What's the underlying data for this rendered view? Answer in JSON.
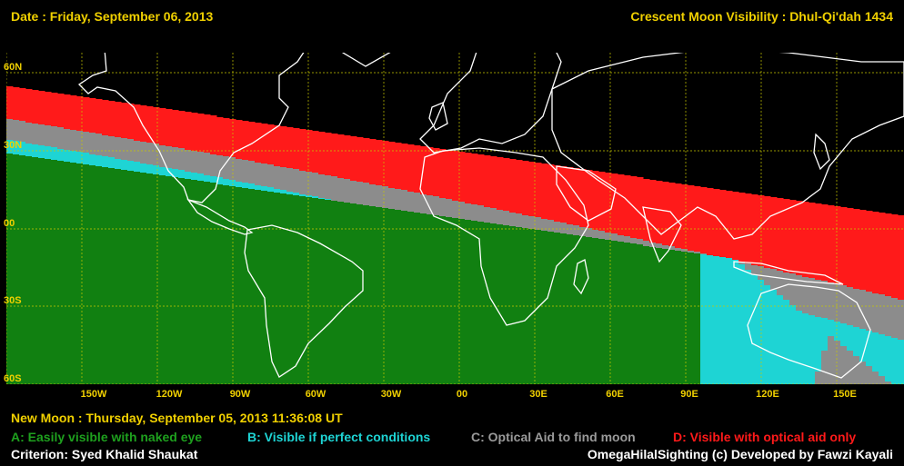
{
  "header": {
    "date": "Date : Friday, September 06, 2013",
    "title": "Crescent Moon Visibility : Dhul-Qi'dah  1434"
  },
  "map": {
    "lat_labels": [
      "60N",
      "30N",
      "00",
      "30S",
      "60S"
    ],
    "lon_labels": [
      "150W",
      "120W",
      "90W",
      "60W",
      "30W",
      "00",
      "30E",
      "60E",
      "90E",
      "120E",
      "150E"
    ],
    "zone_colors": {
      "A": "#118011",
      "B": "#1ed4d4",
      "C": "#8c8c8c",
      "D": "#ff1a1a",
      "none": "#000000"
    },
    "grid_color": "#c8c800",
    "coast_color": "#ffffff"
  },
  "footer": {
    "new_moon": "New Moon : Thursday, September 05, 2013  11:36:08  UT",
    "criterion": "Criterion: Syed Khalid Shaukat",
    "credit": "OmegaHilalSighting  (c)  Developed by Fawzi Kayali"
  },
  "legend": [
    {
      "key": "A",
      "label": "A: Easily visible with naked eye",
      "color": "#1ea01e"
    },
    {
      "key": "B",
      "label": "B: Visible if perfect conditions",
      "color": "#1ed4d4"
    },
    {
      "key": "C",
      "label": "C: Optical Aid to find moon",
      "color": "#9a9a9a"
    },
    {
      "key": "D",
      "label": "D: Visible with optical aid only",
      "color": "#ff1a1a"
    }
  ]
}
